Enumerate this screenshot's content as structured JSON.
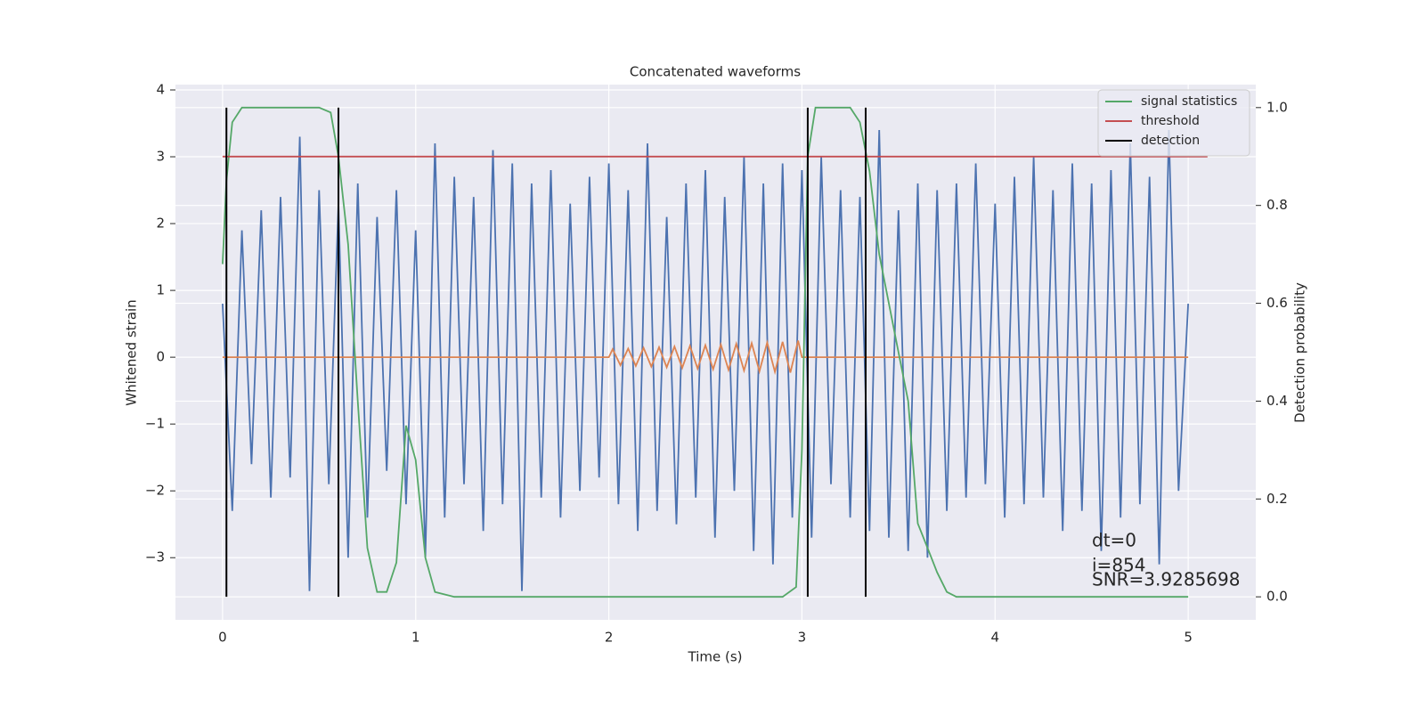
{
  "chart_data": {
    "type": "line",
    "title": "Concatenated waveforms",
    "xlabel": "Time (s)",
    "ylabel": "Whitened strain",
    "y2label": "Detection probability",
    "xlim": [
      -0.244,
      5.35
    ],
    "ylim": [
      -3.93,
      4.08
    ],
    "y2lim": [
      -0.047,
      1.047
    ],
    "xticks": [
      0,
      1,
      2,
      3,
      4,
      5
    ],
    "yticks": [
      {
        "value": -3,
        "label": "−3"
      },
      {
        "value": -2,
        "label": "−2"
      },
      {
        "value": -1,
        "label": "−1"
      },
      0,
      1,
      2,
      3,
      4
    ],
    "y2ticks": [
      {
        "value": 0,
        "label": "0.0"
      },
      {
        "value": 0.2,
        "label": "0.2"
      },
      {
        "value": 0.4,
        "label": "0.4"
      },
      {
        "value": 0.6,
        "label": "0.6"
      },
      {
        "value": 0.8,
        "label": "0.8"
      },
      {
        "value": 1,
        "label": "1.0"
      }
    ],
    "grid": true,
    "legend": "upper right",
    "series": [
      {
        "color": "#4c72b0",
        "x": [
          0,
          0.05,
          0.1,
          0.15,
          0.2,
          0.25,
          0.3,
          0.35,
          0.4,
          0.45,
          0.5,
          0.55,
          0.6,
          0.65,
          0.7,
          0.75,
          0.8,
          0.85,
          0.9,
          0.95,
          1,
          1.05,
          1.1,
          1.15,
          1.2,
          1.25,
          1.3,
          1.35,
          1.4,
          1.45,
          1.5,
          1.55,
          1.6,
          1.65,
          1.7,
          1.75,
          1.8,
          1.85,
          1.9,
          1.95,
          2,
          2.05,
          2.1,
          2.15,
          2.2,
          2.25,
          2.3,
          2.35,
          2.4,
          2.45,
          2.5,
          2.55,
          2.6,
          2.65,
          2.7,
          2.75,
          2.8,
          2.85,
          2.9,
          2.95,
          3,
          3.05,
          3.1,
          3.15,
          3.2,
          3.25,
          3.3,
          3.35,
          3.4,
          3.45,
          3.5,
          3.55,
          3.6,
          3.65,
          3.7,
          3.75,
          3.8,
          3.85,
          3.9,
          3.95,
          4,
          4.05,
          4.1,
          4.15,
          4.2,
          4.25,
          4.3,
          4.35,
          4.4,
          4.45,
          4.5,
          4.55,
          4.6,
          4.65,
          4.7,
          4.75,
          4.8,
          4.85,
          4.9,
          4.95,
          5
        ],
        "values": [
          0.8,
          -2.3,
          1.9,
          -1.6,
          2.2,
          -2.1,
          2.4,
          -1.8,
          3.3,
          -3.5,
          2.5,
          -1.9,
          2.3,
          -3.0,
          2.6,
          -2.4,
          2.1,
          -1.7,
          2.5,
          -2.2,
          1.9,
          -3.0,
          3.2,
          -2.4,
          2.7,
          -1.9,
          2.4,
          -2.6,
          3.1,
          -2.2,
          2.9,
          -3.5,
          2.6,
          -2.1,
          2.8,
          -2.4,
          2.3,
          -2.0,
          2.7,
          -1.8,
          2.9,
          -2.2,
          2.5,
          -2.6,
          3.2,
          -2.3,
          2.1,
          -2.5,
          2.6,
          -2.1,
          2.8,
          -2.7,
          2.4,
          -2.0,
          3.0,
          -2.9,
          2.6,
          -3.1,
          2.9,
          -2.4,
          2.8,
          -2.7,
          3.0,
          -1.9,
          2.5,
          -2.4,
          2.4,
          -2.6,
          3.4,
          -2.7,
          2.2,
          -2.9,
          2.6,
          -3.0,
          2.5,
          -2.3,
          2.6,
          -2.1,
          2.9,
          -1.9,
          2.3,
          -2.4,
          2.7,
          -2.2,
          3.0,
          -2.1,
          2.5,
          -2.6,
          2.9,
          -2.3,
          2.6,
          -2.9,
          2.8,
          -2.4,
          3.2,
          -2.2,
          2.7,
          -3.1,
          3.4,
          -2.0,
          0.8
        ]
      },
      {
        "color": "#dd8452",
        "x": [
          0,
          2,
          2.02,
          2.06,
          2.1,
          2.14,
          2.18,
          2.22,
          2.26,
          2.3,
          2.34,
          2.38,
          2.42,
          2.46,
          2.5,
          2.54,
          2.58,
          2.62,
          2.66,
          2.7,
          2.74,
          2.78,
          2.82,
          2.86,
          2.9,
          2.94,
          2.98,
          3,
          5
        ],
        "values": [
          0,
          0,
          0.12,
          -0.12,
          0.13,
          -0.13,
          0.14,
          -0.14,
          0.15,
          -0.15,
          0.16,
          -0.16,
          0.17,
          -0.17,
          0.18,
          -0.18,
          0.19,
          -0.19,
          0.2,
          -0.2,
          0.21,
          -0.21,
          0.22,
          -0.22,
          0.23,
          -0.23,
          0.25,
          0,
          0
        ]
      },
      {
        "name": "signal statistics",
        "color": "#55a868",
        "axis": "y2",
        "x": [
          0,
          0.02,
          0.05,
          0.1,
          0.5,
          0.56,
          0.6,
          0.65,
          0.7,
          0.75,
          0.8,
          0.85,
          0.9,
          0.95,
          1,
          1.05,
          1.1,
          1.2,
          2.9,
          2.97,
          3,
          3.03,
          3.07,
          3.25,
          3.3,
          3.35,
          3.4,
          3.5,
          3.55,
          3.6,
          3.65,
          3.7,
          3.75,
          3.8,
          5
        ],
        "values": [
          0.68,
          0.85,
          0.97,
          1,
          1,
          0.99,
          0.9,
          0.72,
          0.4,
          0.1,
          0.01,
          0.01,
          0.07,
          0.35,
          0.28,
          0.08,
          0.01,
          0,
          0,
          0.02,
          0.3,
          0.9,
          1,
          1,
          0.97,
          0.87,
          0.7,
          0.5,
          0.4,
          0.15,
          0.1,
          0.05,
          0.01,
          0,
          0
        ]
      },
      {
        "name": "threshold",
        "color": "#c44e52",
        "axis": "y2",
        "x": [
          0,
          5.1
        ],
        "values": [
          0.9,
          0.9
        ]
      },
      {
        "name": "detection",
        "color": "#000000",
        "axis": "y2",
        "kind": "vlines",
        "x": [
          0.02,
          0.6,
          3.03,
          3.33
        ],
        "values": [
          1,
          1,
          1,
          1
        ],
        "ymin": 0
      }
    ],
    "annotations": [
      "dt=0",
      "i=854",
      "SNR=3.9285698"
    ]
  }
}
